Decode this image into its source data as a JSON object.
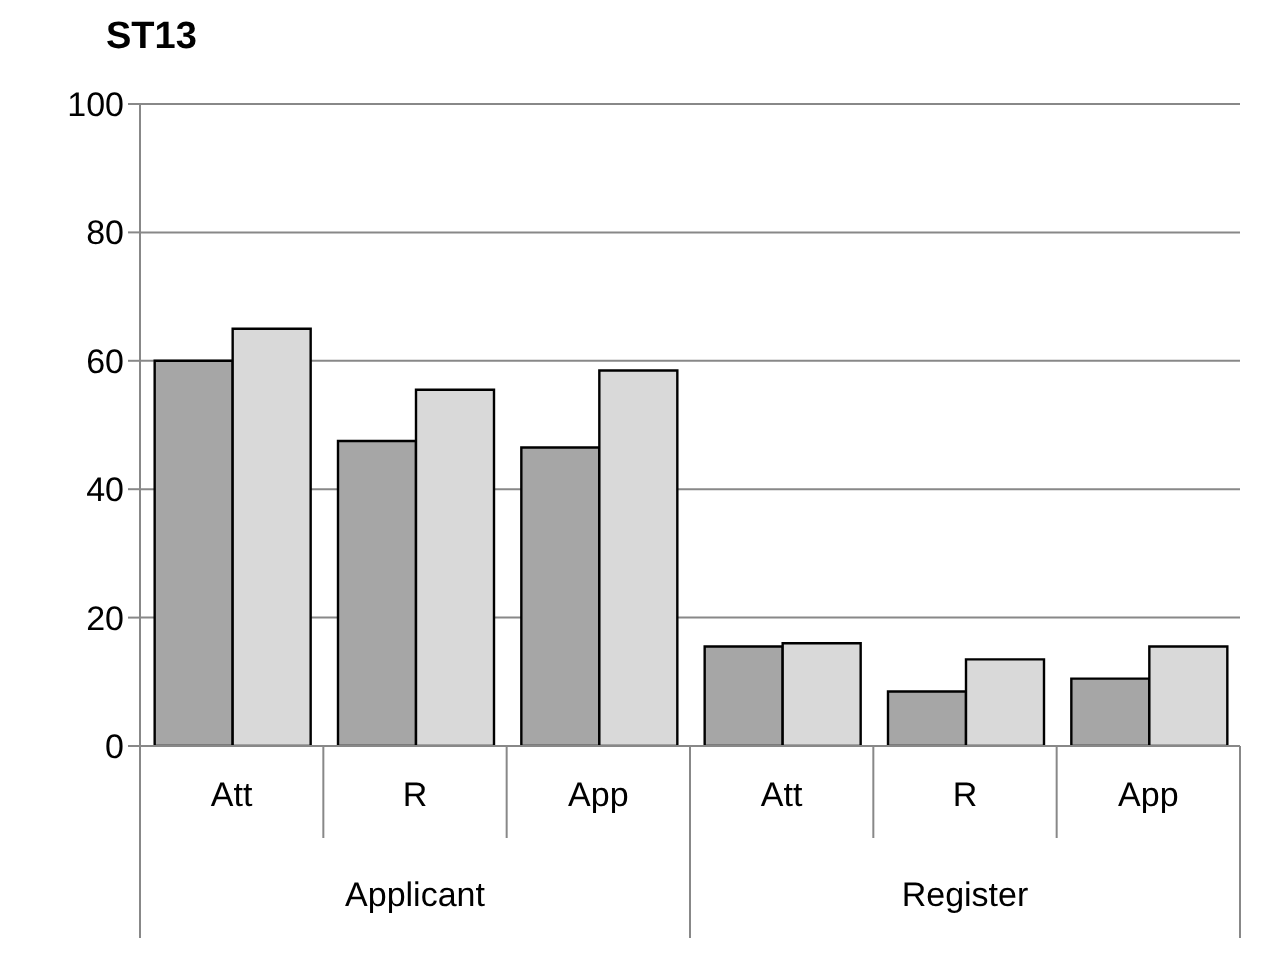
{
  "chart_data": {
    "type": "bar",
    "title": "ST13",
    "categories": [
      "Att",
      "R",
      "App",
      "Att",
      "R",
      "App"
    ],
    "series": [
      {
        "color": "#a6a6a6",
        "values": [
          60,
          47.5,
          46.5,
          15.5,
          8.5,
          10.5
        ]
      },
      {
        "color": "#d9d9d9",
        "values": [
          65,
          55.5,
          58.5,
          16,
          13.5,
          15.5
        ]
      }
    ],
    "ylim": [
      0,
      100
    ],
    "yticks": [
      0,
      20,
      40,
      60,
      80,
      100
    ],
    "grid": "y",
    "legend": false,
    "annotations": [
      "Applicant",
      "Register"
    ]
  }
}
